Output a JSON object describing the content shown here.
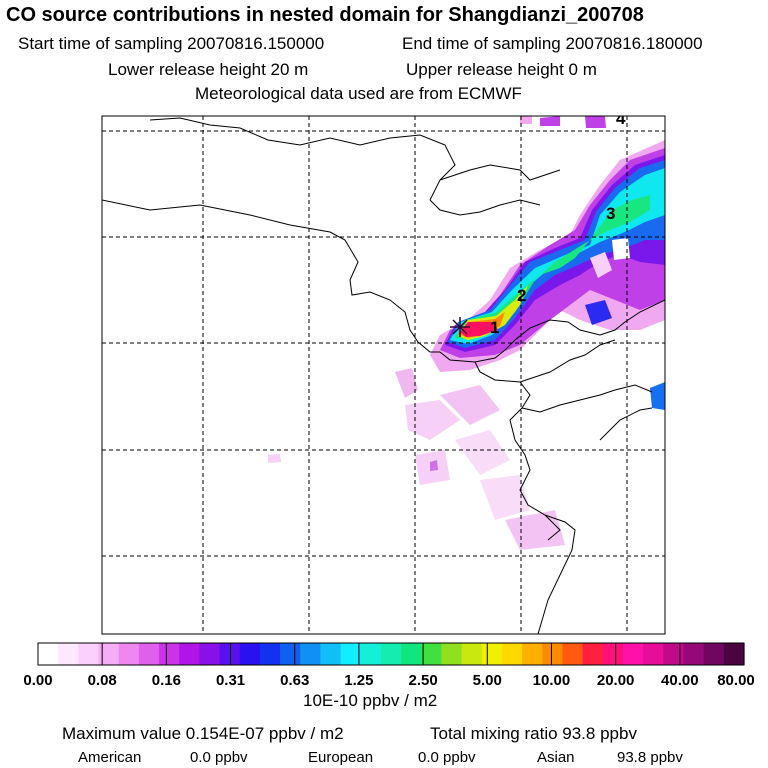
{
  "header": {
    "title": "CO  source contributions in nested domain for Shangdianzi_200708",
    "start_label": "Start time of sampling 20070816.150000",
    "end_label": "End time of sampling 20070816.180000",
    "lower_label": "Lower release height   20 m",
    "upper_label": "Upper release height    0 m",
    "met_label": "Meteorological data used are from ECMWF"
  },
  "colors": {
    "scale": [
      "#ffffff",
      "#fde8fd",
      "#fbd0fb",
      "#f5aef5",
      "#ee88f0",
      "#e060ee",
      "#cc33e8",
      "#b014e6",
      "#8a10e8",
      "#5a10ec",
      "#2a12f0",
      "#1430f0",
      "#1060f0",
      "#1090f5",
      "#10bef8",
      "#10eeff",
      "#14f0d8",
      "#14ecb0",
      "#10e680",
      "#40e040",
      "#90e020",
      "#c8e810",
      "#f0f000",
      "#ffd800",
      "#ffb000",
      "#ff8a00",
      "#ff5a10",
      "#ff2040",
      "#ff1078",
      "#ff10a8",
      "#e80c9a",
      "#c00a8a",
      "#960878",
      "#700660",
      "#4a0440"
    ],
    "source_mark": "#330033"
  },
  "chart_data": {
    "type": "heatmap",
    "colorbar_ticks": [
      "0.00",
      "0.08",
      "0.16",
      "0.31",
      "0.63",
      "1.25",
      "2.50",
      "5.00",
      "10.00",
      "20.00",
      "40.00",
      "80.00"
    ],
    "colorbar_unit": "10E-10 ppbv / m2",
    "receptor": "Shangdianzi",
    "position_labels": [
      "1",
      "2",
      "3",
      "4"
    ],
    "grid": true,
    "plume_description_values": {
      "max_value": "0.154E-07 ppbv / m2",
      "total_mixing_ratio": "93.8 ppbv"
    }
  },
  "footer": {
    "max_label": "Maximum value  0.154E-07 ppbv / m2",
    "total_label": "Total mixing ratio       93.8 ppbv",
    "american_label": "American",
    "american_value": "0.0 ppbv",
    "european_label": "European",
    "european_value": "0.0 ppbv",
    "asian_label": "Asian",
    "asian_value": "93.8 ppbv"
  }
}
